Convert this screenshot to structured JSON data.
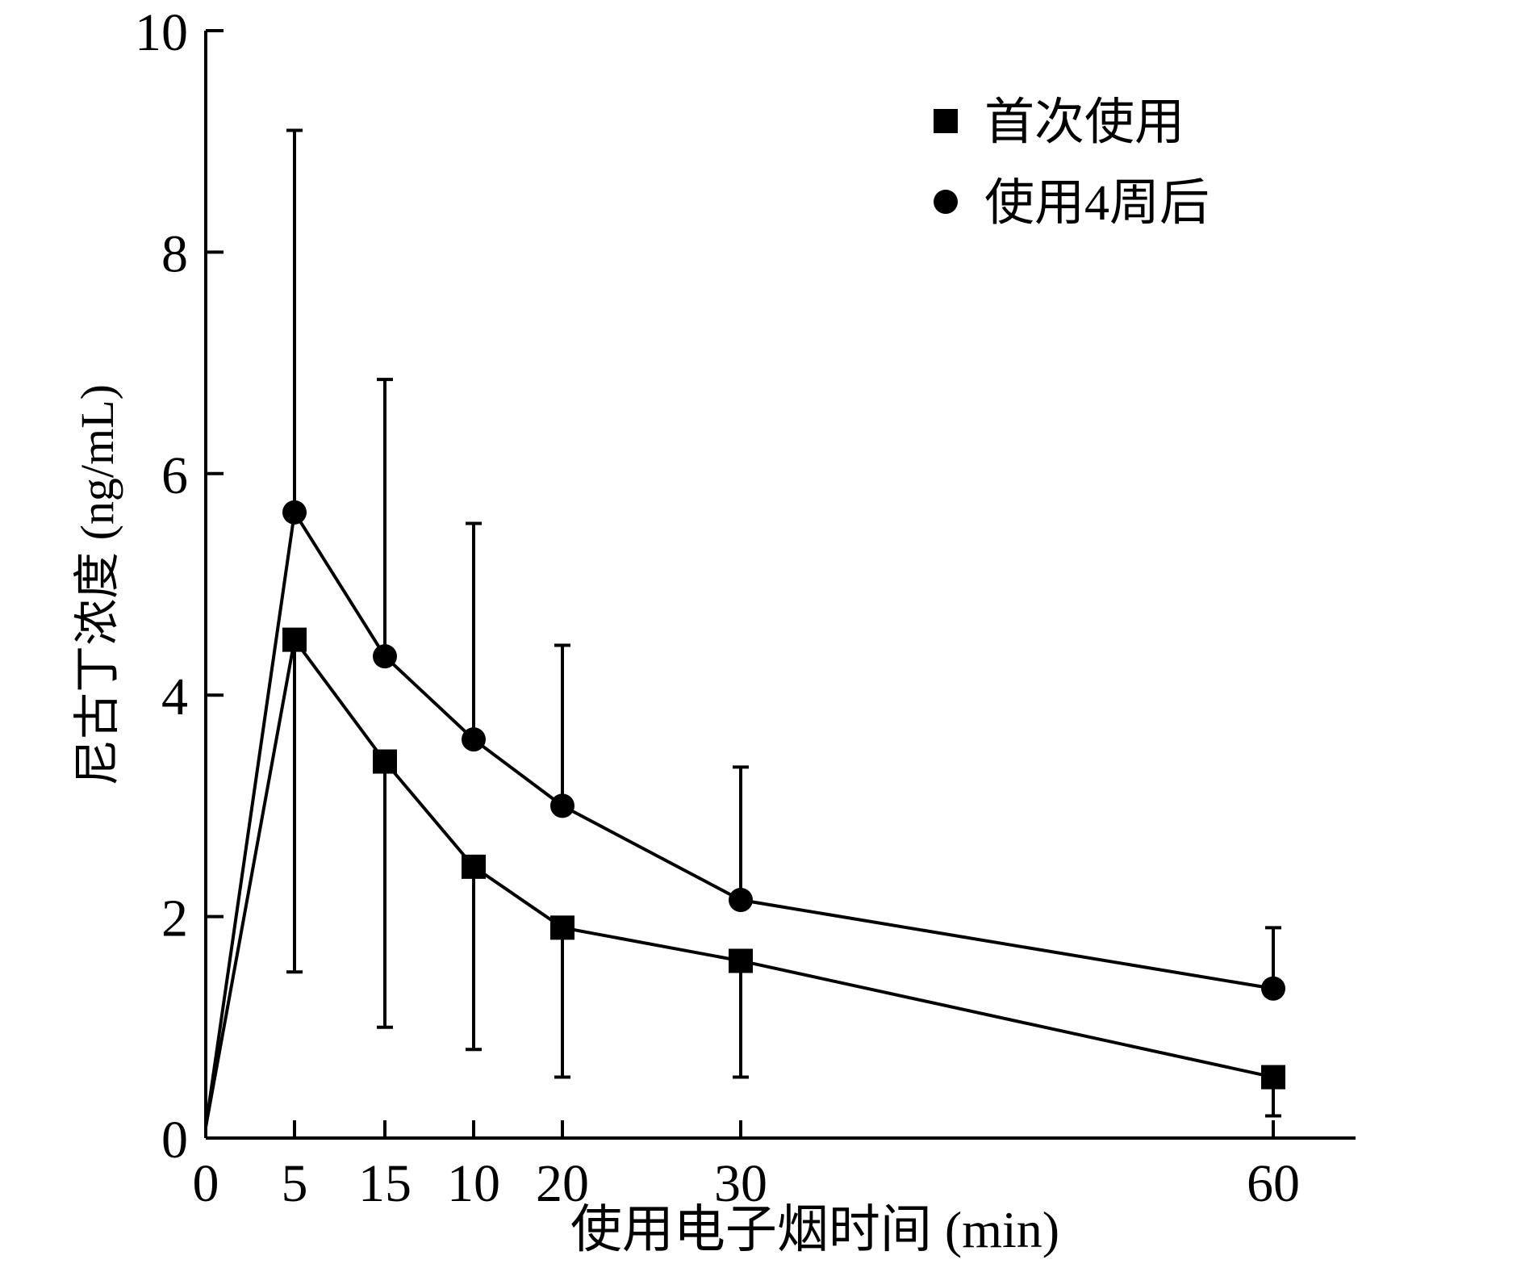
{
  "chart_data": {
    "type": "line",
    "xlabel": "使用电子烟时间 (min)",
    "ylabel": "尼古丁浓度 (ng/mL)",
    "ylim": [
      0,
      10
    ],
    "yticks": [
      0,
      2,
      4,
      6,
      8,
      10
    ],
    "categories": [
      "0",
      "5",
      "15",
      "10",
      "20",
      "30",
      "60"
    ],
    "legend_position": "top-right",
    "grid": false,
    "series": [
      {
        "name": "首次使用",
        "marker": "square",
        "x": [
          "0",
          "5",
          "15",
          "10",
          "20",
          "30",
          "60"
        ],
        "values": [
          0.1,
          4.5,
          3.4,
          2.45,
          1.9,
          1.6,
          0.55
        ],
        "error_upper": [
          null,
          null,
          null,
          null,
          null,
          null,
          null
        ],
        "error_lower": [
          null,
          1.5,
          1.0,
          0.8,
          0.55,
          0.55,
          0.2
        ]
      },
      {
        "name": "使用4周后",
        "marker": "circle",
        "x": [
          "0",
          "5",
          "15",
          "10",
          "20",
          "30",
          "60"
        ],
        "values": [
          0.1,
          5.65,
          4.35,
          3.6,
          3.0,
          2.15,
          1.35
        ],
        "error_upper": [
          null,
          9.1,
          6.85,
          5.55,
          4.45,
          3.35,
          1.9
        ],
        "error_lower": [
          null,
          null,
          null,
          null,
          null,
          null,
          null
        ]
      }
    ]
  }
}
